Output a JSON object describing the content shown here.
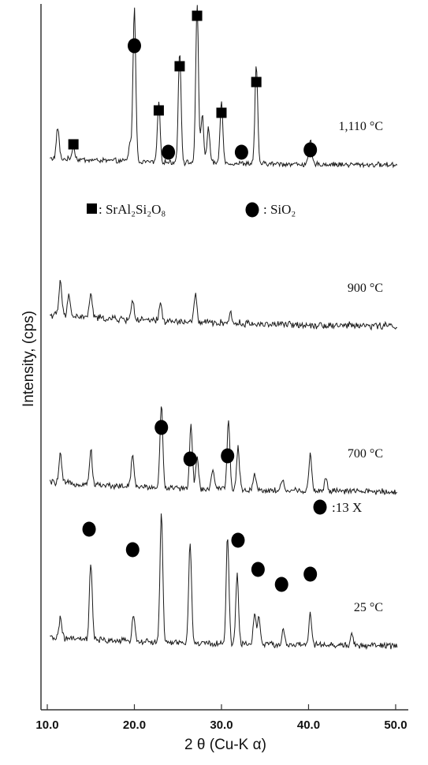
{
  "chart_data": {
    "type": "line",
    "title": "",
    "xlabel": "2 θ (Cu-K α)",
    "ylabel": "Intensity, (cps)",
    "xlim": [
      10,
      51
    ],
    "x_ticks": [
      "10.0",
      "20.0",
      "30.0",
      "40.0",
      "50.0"
    ],
    "x_tick_values": [
      10,
      20,
      30,
      40,
      50
    ],
    "grid": false,
    "series": [
      {
        "name": "1,110 °C",
        "baseline_level": 0.2,
        "noise": 0.06,
        "peaks": [
          [
            11.2,
            0.9
          ],
          [
            13.0,
            0.4
          ],
          [
            20.0,
            4.4
          ],
          [
            22.8,
            1.7
          ],
          [
            25.2,
            3.2
          ],
          [
            27.2,
            4.5
          ],
          [
            27.8,
            1.4
          ],
          [
            30.0,
            1.8
          ],
          [
            34.0,
            2.8
          ],
          [
            40.2,
            0.7
          ],
          [
            19.5,
            0.5
          ],
          [
            28.5,
            1.0
          ]
        ]
      },
      {
        "name": "900 °C",
        "baseline_level": 0.35,
        "noise": 0.08,
        "peaks": [
          [
            11.5,
            1.0
          ],
          [
            12.5,
            0.6
          ],
          [
            15.0,
            0.7
          ],
          [
            19.8,
            0.6
          ],
          [
            23.0,
            0.5
          ],
          [
            27.0,
            0.8
          ],
          [
            31.0,
            0.3
          ]
        ]
      },
      {
        "name": "700 °C",
        "baseline_level": 0.3,
        "noise": 0.07,
        "peaks": [
          [
            11.5,
            0.8
          ],
          [
            15.0,
            1.0
          ],
          [
            19.8,
            0.9
          ],
          [
            23.1,
            2.4
          ],
          [
            26.5,
            1.8
          ],
          [
            27.2,
            0.9
          ],
          [
            29.0,
            0.6
          ],
          [
            30.8,
            2.0
          ],
          [
            31.9,
            1.2
          ],
          [
            33.8,
            0.5
          ],
          [
            37.0,
            0.3
          ],
          [
            40.2,
            1.1
          ],
          [
            42.0,
            0.4
          ]
        ]
      },
      {
        "name": "25 °C",
        "baseline_level": 0.25,
        "noise": 0.07,
        "peaks": [
          [
            11.5,
            0.6
          ],
          [
            15.0,
            2.2
          ],
          [
            19.9,
            0.8
          ],
          [
            23.1,
            3.7
          ],
          [
            26.4,
            2.9
          ],
          [
            30.7,
            3.1
          ],
          [
            31.8,
            2.0
          ],
          [
            33.8,
            0.9
          ],
          [
            34.3,
            0.8
          ],
          [
            37.1,
            0.4
          ],
          [
            40.2,
            0.9
          ],
          [
            45.0,
            0.3
          ]
        ]
      }
    ],
    "annotations": [
      {
        "series": "1,110 °C",
        "marker": "square",
        "x": [
          13.0,
          22.8,
          25.2,
          27.2,
          30.0,
          34.0
        ]
      },
      {
        "series": "1,110 °C",
        "marker": "circle",
        "x": [
          20.0,
          23.9,
          32.3,
          40.2
        ]
      },
      {
        "series": "25 °C",
        "marker": "circle",
        "x": [
          14.8,
          19.8,
          23.1,
          26.4,
          30.7,
          31.9,
          34.2,
          36.9,
          40.2
        ]
      }
    ],
    "legend": [
      {
        "marker": "square",
        "label": ": SrAl₂Si₂O₈"
      },
      {
        "marker": "circle",
        "label": ": SiO₂"
      },
      {
        "marker": "circle",
        "label": ":13 X"
      }
    ],
    "colors": {
      "line": "#1a1a1a",
      "marker": "#000000",
      "axis": "#333333"
    }
  }
}
